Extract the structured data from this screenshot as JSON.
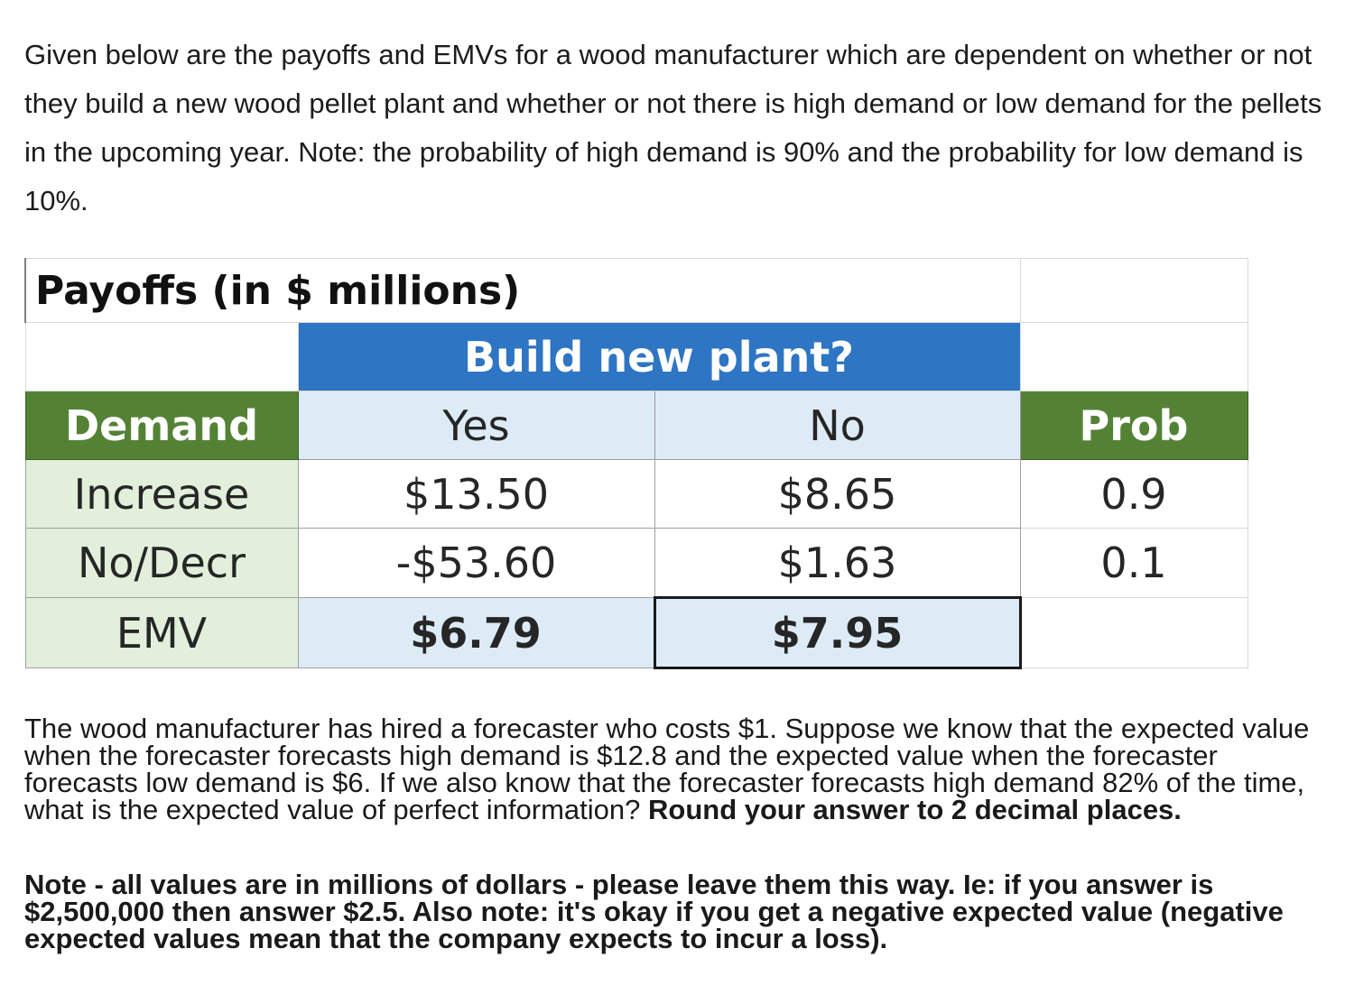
{
  "intro": "Given below are the payoffs and EMVs for a wood manufacturer which are dependent on whether or not they build a new wood pellet plant and whether or not there is high demand or low demand for the pellets in the upcoming year.  Note: the probability of high demand is 90% and the probability for low demand is 10%.",
  "table": {
    "title": "Payoffs (in $ millions)",
    "build_header": "Build new plant?",
    "demand_header": "Demand",
    "yes_header": "Yes",
    "no_header": "No",
    "prob_header": "Prob",
    "rows": [
      {
        "label": "Increase",
        "yes": "$13.50",
        "no": "$8.65",
        "prob": "0.9"
      },
      {
        "label": "No/Decr",
        "yes": "-$53.60",
        "no": "$1.63",
        "prob": "0.1"
      }
    ],
    "emv": {
      "label": "EMV",
      "yes": "$6.79",
      "no": "$7.95"
    }
  },
  "question": {
    "text": "The wood manufacturer has hired a forecaster who costs $1.  Suppose we know that the expected value when the forecaster forecasts high demand is $12.8 and the expected value when the forecaster forecasts low demand is $6.  If we also know that the forecaster forecasts high demand 82% of the time, what is the expected value of perfect information?  ",
    "bold": "Round your answer to 2 decimal places."
  },
  "note": "Note - all values are in millions of dollars - please leave them this way.  Ie: if you answer is $2,500,000 then answer $2.5.  Also note: it's okay if you get a negative expected value (negative expected values mean that the company expects to incur a loss).",
  "colors": {
    "build_header_bg": "#2e75c4",
    "demand_header_bg": "#548235",
    "row_label_bg": "#e2efda",
    "light_blue_bg": "#ddebf7"
  }
}
